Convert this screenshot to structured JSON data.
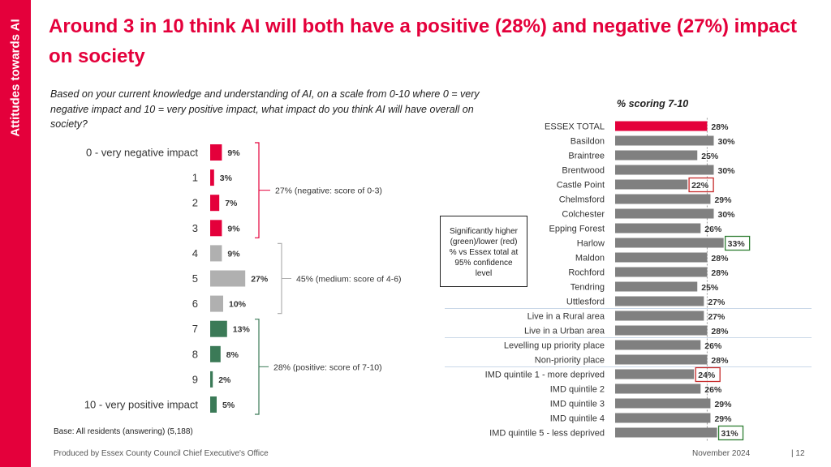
{
  "sidebar_label": "Attitudes towards AI",
  "title": "Around 3 in 10 think AI will both have a positive (28%) and negative (27%) impact on society",
  "question": "Based on your current knowledge and understanding of AI, on a scale from 0-10 where 0 = very negative impact and 10 = very positive impact, what impact do you think AI will have overall on society?",
  "right_header": "% scoring 7-10",
  "significance_note": "Significantly higher (green)/lower (red) % vs Essex total at 95% confidence level",
  "base_note": "Base: All residents (answering) (5,188)",
  "footer": {
    "producer": "Produced by Essex County Council Chief Executive's Office",
    "date": "November 2024",
    "page": "|  12"
  },
  "colors": {
    "brand_red": "#e4003b",
    "negative": "#e4003b",
    "medium": "#b0b0b0",
    "positive": "#3b7a57",
    "grey_bar": "#808080",
    "sig_green": "#2e7d32",
    "sig_red": "#c62828"
  },
  "chart_data": [
    {
      "type": "bar",
      "orientation": "horizontal",
      "categories": [
        "0 - very negative impact",
        "1",
        "2",
        "3",
        "4",
        "5",
        "6",
        "7",
        "8",
        "9",
        "10 - very positive impact"
      ],
      "values": [
        9,
        3,
        7,
        9,
        9,
        27,
        10,
        13,
        8,
        2,
        5
      ],
      "value_labels": [
        "9%",
        "3%",
        "7%",
        "9%",
        "9%",
        "27%",
        "10%",
        "13%",
        "8%",
        "2%",
        "5%"
      ],
      "groups": [
        {
          "label": "27% (negative: score of 0-3)",
          "from": 0,
          "to": 3,
          "color_key": "negative"
        },
        {
          "label": "45% (medium: score of 4-6)",
          "from": 4,
          "to": 6,
          "color_key": "medium"
        },
        {
          "label": "28% (positive: score of 7-10)",
          "from": 7,
          "to": 10,
          "color_key": "positive"
        }
      ]
    },
    {
      "type": "bar",
      "orientation": "horizontal",
      "title": "% scoring 7-10",
      "categories": [
        "ESSEX TOTAL",
        "Basildon",
        "Braintree",
        "Brentwood",
        "Castle Point",
        "Chelmsford",
        "Colchester",
        "Epping Forest",
        "Harlow",
        "Maldon",
        "Rochford",
        "Tendring",
        "Uttlesford",
        "Live in a Rural area",
        "Live in a Urban area",
        "Levelling up priority place",
        "Non-priority place",
        "IMD quintile 1 - more deprived",
        "IMD quintile 2",
        "IMD quintile 3",
        "IMD quintile 4",
        "IMD quintile 5 - less deprived"
      ],
      "values": [
        28,
        30,
        25,
        30,
        22,
        29,
        30,
        26,
        33,
        28,
        28,
        25,
        27,
        27,
        28,
        26,
        28,
        24,
        26,
        29,
        29,
        31
      ],
      "value_labels": [
        "28%",
        "30%",
        "25%",
        "30%",
        "22%",
        "29%",
        "30%",
        "26%",
        "33%",
        "28%",
        "28%",
        "25%",
        "27%",
        "27%",
        "28%",
        "26%",
        "28%",
        "24%",
        "26%",
        "29%",
        "29%",
        "31%"
      ],
      "significance": [
        "total",
        "",
        "",
        "",
        "lower",
        "",
        "",
        "",
        "higher",
        "",
        "",
        "",
        "",
        "",
        "",
        "",
        "",
        "lower",
        "",
        "",
        "",
        "higher"
      ],
      "reference_line": 28
    }
  ]
}
